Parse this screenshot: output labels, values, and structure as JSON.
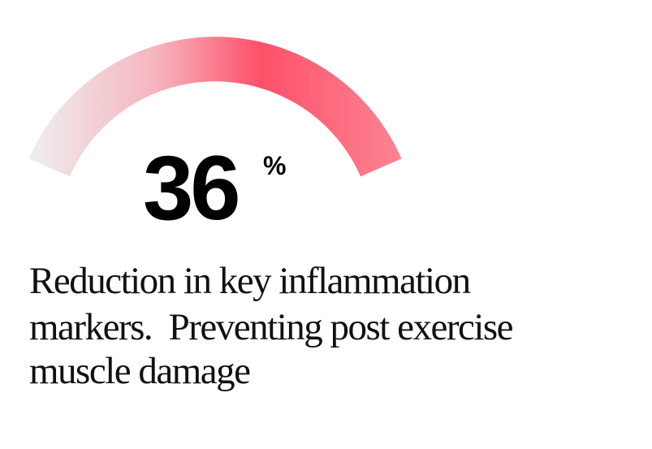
{
  "stat": {
    "value": 36,
    "unit": "%",
    "description": [
      "Reduction in key inflammation",
      "markers.  Preventing post exercise",
      "muscle damage"
    ]
  }
}
